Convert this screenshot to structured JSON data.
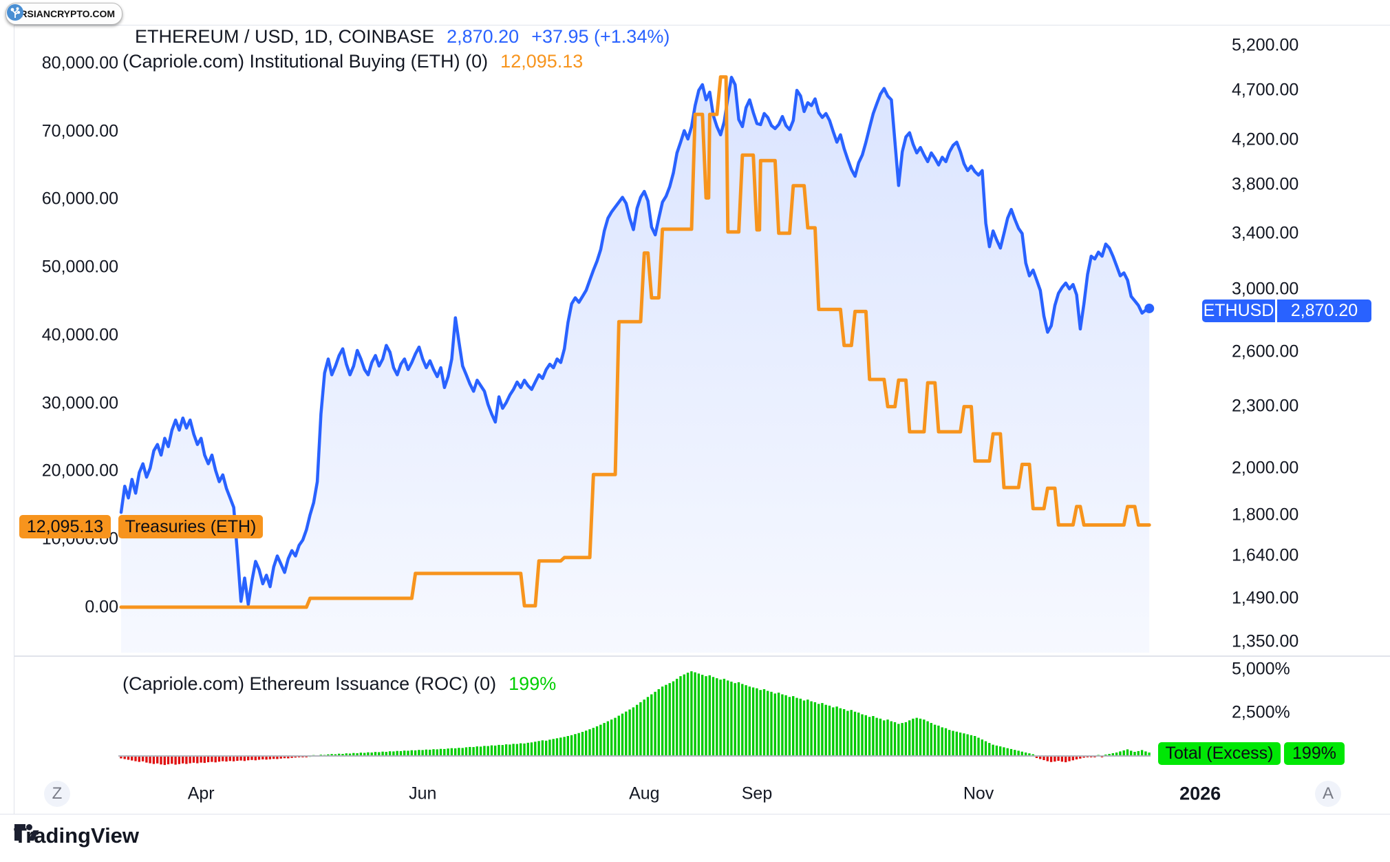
{
  "brand": {
    "name": "PARSIANCRYPTO.COM"
  },
  "header": {
    "symbol_title": "ETHEREUM / USD, 1D, COINBASE",
    "price": "2,870.20",
    "change": "+37.95 (+1.34%)",
    "indicator1_title": "(Capriole.com) Institutional Buying (ETH) (0)",
    "indicator1_value": "12,095.13"
  },
  "pane2": {
    "indicator_title": "(Capriole.com) Ethereum Issuance (ROC) (0)",
    "indicator_value": "199%"
  },
  "labels": {
    "treasuries_value": "12,095.13",
    "treasuries_name": "Treasuries (ETH)",
    "ethusd_name": "ETHUSD",
    "ethusd_value": "2,870.20",
    "total_excess_name": "Total (Excess)",
    "total_excess_value": "199%"
  },
  "buttons": {
    "scale_left": "Z",
    "scale_right": "A"
  },
  "footer": {
    "brand": "TradingView"
  },
  "colors": {
    "blue": "#2962FF",
    "orange": "#F7941D",
    "green_bar": "#00CC00",
    "green_bright": "#00E705",
    "red_bar": "#E01010",
    "text": "#131722",
    "muted": "#787b86",
    "frame": "#e0e3eb"
  },
  "left_axis": {
    "ticks": [
      {
        "label": "80,000.00",
        "value": 80000
      },
      {
        "label": "70,000.00",
        "value": 70000
      },
      {
        "label": "60,000.00",
        "value": 60000
      },
      {
        "label": "50,000.00",
        "value": 50000
      },
      {
        "label": "40,000.00",
        "value": 40000
      },
      {
        "label": "30,000.00",
        "value": 30000
      },
      {
        "label": "20,000.00",
        "value": 20000
      },
      {
        "label": "10,000.00",
        "value": 10000
      },
      {
        "label": "0.00",
        "value": 0
      }
    ]
  },
  "right_axis": {
    "ticks": [
      {
        "label": "5,200.00",
        "value": 5200
      },
      {
        "label": "4,700.00",
        "value": 4700
      },
      {
        "label": "4,200.00",
        "value": 4200
      },
      {
        "label": "3,800.00",
        "value": 3800
      },
      {
        "label": "3,400.00",
        "value": 3400
      },
      {
        "label": "3,000.00",
        "value": 3000
      },
      {
        "label": "2,600.00",
        "value": 2600
      },
      {
        "label": "2,300.00",
        "value": 2300
      },
      {
        "label": "2,000.00",
        "value": 2000
      },
      {
        "label": "1,800.00",
        "value": 1800
      },
      {
        "label": "1,640.00",
        "value": 1640
      },
      {
        "label": "1,490.00",
        "value": 1490
      },
      {
        "label": "1,350.00",
        "value": 1350
      }
    ]
  },
  "pane2_axis": {
    "ticks": [
      {
        "label": "5,000%",
        "value": 5000
      },
      {
        "label": "2,500%",
        "value": 2500
      }
    ]
  },
  "time_axis": [
    {
      "label": "Apr",
      "day": 22
    },
    {
      "label": "Jun",
      "day": 83
    },
    {
      "label": "Aug",
      "day": 144
    },
    {
      "label": "Sep",
      "day": 175
    },
    {
      "label": "Nov",
      "day": 236
    },
    {
      "label": "2026",
      "day": 297,
      "bold": true
    }
  ],
  "chart_data": [
    {
      "type": "area",
      "name": "ETHUSD price",
      "axis": "right-log",
      "ylim": [
        1350,
        5200
      ],
      "last_value": 2870.2,
      "values": [
        1810,
        1920,
        1870,
        1950,
        1890,
        1980,
        2020,
        1960,
        2000,
        2080,
        2110,
        2060,
        2140,
        2100,
        2180,
        2230,
        2180,
        2240,
        2190,
        2230,
        2160,
        2110,
        2140,
        2060,
        2020,
        2060,
        1990,
        1940,
        1970,
        1910,
        1870,
        1830,
        1650,
        1480,
        1560,
        1470,
        1550,
        1620,
        1590,
        1540,
        1570,
        1530,
        1600,
        1640,
        1610,
        1580,
        1630,
        1660,
        1640,
        1680,
        1700,
        1740,
        1800,
        1850,
        1940,
        2260,
        2480,
        2560,
        2470,
        2520,
        2580,
        2620,
        2530,
        2470,
        2520,
        2610,
        2560,
        2500,
        2470,
        2540,
        2580,
        2520,
        2560,
        2640,
        2600,
        2510,
        2470,
        2530,
        2560,
        2500,
        2540,
        2590,
        2630,
        2560,
        2510,
        2550,
        2500,
        2460,
        2510,
        2400,
        2460,
        2560,
        2810,
        2660,
        2520,
        2470,
        2420,
        2380,
        2440,
        2410,
        2380,
        2310,
        2260,
        2220,
        2350,
        2290,
        2320,
        2360,
        2390,
        2430,
        2400,
        2440,
        2410,
        2390,
        2430,
        2470,
        2450,
        2500,
        2530,
        2510,
        2560,
        2540,
        2620,
        2780,
        2900,
        2940,
        2910,
        2950,
        2990,
        3060,
        3130,
        3195,
        3280,
        3420,
        3520,
        3570,
        3610,
        3650,
        3690,
        3640,
        3520,
        3430,
        3600,
        3690,
        3740,
        3660,
        3450,
        3390,
        3520,
        3650,
        3700,
        3780,
        3900,
        4080,
        4180,
        4290,
        4210,
        4330,
        4540,
        4700,
        4760,
        4600,
        4680,
        4440,
        4330,
        4250,
        4380,
        4620,
        4840,
        4760,
        4400,
        4330,
        4520,
        4600,
        4470,
        4360,
        4350,
        4460,
        4420,
        4340,
        4310,
        4350,
        4430,
        4340,
        4300,
        4390,
        4700,
        4640,
        4480,
        4570,
        4540,
        4610,
        4470,
        4420,
        4460,
        4390,
        4280,
        4180,
        4250,
        4120,
        4020,
        3930,
        3870,
        3990,
        4060,
        4180,
        4320,
        4460,
        4560,
        4660,
        4720,
        4640,
        4600,
        4180,
        3790,
        4090,
        4230,
        4270,
        4160,
        4080,
        4130,
        4060,
        4000,
        4080,
        4030,
        3970,
        4040,
        4000,
        4090,
        4150,
        4180,
        4090,
        3980,
        3920,
        3960,
        3910,
        3880,
        3920,
        3480,
        3300,
        3420,
        3350,
        3290,
        3400,
        3520,
        3590,
        3510,
        3440,
        3400,
        3180,
        3090,
        3130,
        3060,
        2990,
        2820,
        2720,
        2760,
        2890,
        2970,
        3010,
        3040,
        3000,
        3030,
        2960,
        2740,
        2900,
        3100,
        3230,
        3210,
        3260,
        3230,
        3320,
        3290,
        3230,
        3160,
        3090,
        3110,
        3060,
        2950,
        2920,
        2890,
        2840,
        2860,
        2870.2
      ]
    },
    {
      "type": "line",
      "name": "Treasuries (ETH)",
      "axis": "left-linear",
      "ylim": [
        0,
        80000
      ],
      "last_value": 12095.13,
      "steps": [
        [
          0,
          0
        ],
        [
          51,
          0
        ],
        [
          52,
          1300
        ],
        [
          80,
          1300
        ],
        [
          81,
          4960
        ],
        [
          110,
          4960
        ],
        [
          111,
          200
        ],
        [
          114,
          200
        ],
        [
          115,
          6800
        ],
        [
          121,
          6800
        ],
        [
          122,
          7300
        ],
        [
          129,
          7300
        ],
        [
          130,
          19500
        ],
        [
          136,
          19500
        ],
        [
          137,
          42000
        ],
        [
          143,
          42000
        ],
        [
          144,
          52100
        ],
        [
          145,
          52100
        ],
        [
          146,
          45500
        ],
        [
          148,
          45500
        ],
        [
          149,
          55600
        ],
        [
          157,
          55600
        ],
        [
          158,
          72500
        ],
        [
          160,
          72500
        ],
        [
          161,
          60200
        ],
        [
          161.7,
          60200
        ],
        [
          162,
          72500
        ],
        [
          164,
          72500
        ],
        [
          165,
          78000
        ],
        [
          166.5,
          78000
        ],
        [
          167,
          55200
        ],
        [
          170,
          55200
        ],
        [
          171,
          66500
        ],
        [
          174,
          66500
        ],
        [
          175,
          55500
        ],
        [
          175.7,
          55500
        ],
        [
          176,
          65700
        ],
        [
          180,
          65700
        ],
        [
          181,
          55000
        ],
        [
          184,
          55000
        ],
        [
          185,
          62000
        ],
        [
          188,
          62000
        ],
        [
          189,
          55800
        ],
        [
          191,
          55800
        ],
        [
          192,
          43800
        ],
        [
          198,
          43800
        ],
        [
          199,
          38500
        ],
        [
          201,
          38500
        ],
        [
          202,
          43500
        ],
        [
          205,
          43500
        ],
        [
          206,
          33500
        ],
        [
          210,
          33500
        ],
        [
          211,
          29500
        ],
        [
          213,
          29500
        ],
        [
          214,
          33400
        ],
        [
          216,
          33400
        ],
        [
          217,
          25800
        ],
        [
          221,
          25800
        ],
        [
          222,
          33000
        ],
        [
          224,
          33000
        ],
        [
          225,
          25800
        ],
        [
          231,
          25800
        ],
        [
          232,
          29500
        ],
        [
          234,
          29500
        ],
        [
          235,
          21500
        ],
        [
          239,
          21500
        ],
        [
          240,
          25500
        ],
        [
          242,
          25500
        ],
        [
          243,
          17600
        ],
        [
          247,
          17600
        ],
        [
          248,
          21000
        ],
        [
          250,
          21000
        ],
        [
          251,
          14500
        ],
        [
          254,
          14500
        ],
        [
          255,
          17500
        ],
        [
          257,
          17500
        ],
        [
          258,
          12100
        ],
        [
          262,
          12100
        ],
        [
          263,
          14800
        ],
        [
          264,
          14800
        ],
        [
          265,
          12095
        ],
        [
          276,
          12095
        ],
        [
          277,
          14800
        ],
        [
          279,
          14800
        ],
        [
          280,
          12095
        ],
        [
          283,
          12095
        ]
      ]
    },
    {
      "type": "bar",
      "name": "Ethereum Issuance ROC %",
      "axis": "pane2-percent",
      "ylim": [
        -700,
        5000
      ],
      "last_value": 199,
      "values": [
        -140,
        -180,
        -220,
        -260,
        -300,
        -340,
        -310,
        -380,
        -420,
        -460,
        -430,
        -490,
        -520,
        -480,
        -450,
        -500,
        -470,
        -430,
        -460,
        -420,
        -390,
        -420,
        -380,
        -400,
        -360,
        -340,
        -370,
        -330,
        -300,
        -320,
        -290,
        -310,
        -280,
        -260,
        -290,
        -250,
        -230,
        -250,
        -220,
        -200,
        -210,
        -190,
        -170,
        -180,
        -150,
        -130,
        -140,
        -110,
        -90,
        -70,
        -60,
        -40,
        30,
        50,
        40,
        70,
        60,
        90,
        110,
        100,
        130,
        120,
        150,
        140,
        170,
        160,
        190,
        180,
        210,
        200,
        230,
        220,
        250,
        240,
        270,
        260,
        290,
        280,
        310,
        300,
        330,
        320,
        350,
        340,
        370,
        360,
        390,
        380,
        410,
        400,
        430,
        450,
        440,
        470,
        460,
        500,
        520,
        510,
        550,
        540,
        580,
        570,
        610,
        600,
        640,
        630,
        670,
        660,
        700,
        690,
        730,
        720,
        760,
        780,
        820,
        860,
        900,
        880,
        940,
        980,
        1020,
        1060,
        1100,
        1150,
        1200,
        1260,
        1320,
        1390,
        1460,
        1540,
        1620,
        1710,
        1800,
        1900,
        2000,
        2100,
        2200,
        2320,
        2440,
        2560,
        2680,
        2800,
        2950,
        3100,
        3250,
        3400,
        3550,
        3700,
        3850,
        4000,
        4100,
        4200,
        4300,
        4450,
        4600,
        4700,
        4800,
        4880,
        4820,
        4750,
        4680,
        4600,
        4650,
        4550,
        4480,
        4400,
        4450,
        4350,
        4280,
        4200,
        4250,
        4150,
        4080,
        4000,
        3950,
        3900,
        3800,
        3850,
        3750,
        3700,
        3600,
        3650,
        3550,
        3500,
        3400,
        3450,
        3350,
        3300,
        3200,
        3250,
        3150,
        3100,
        3000,
        3050,
        2950,
        2900,
        2800,
        2850,
        2750,
        2700,
        2600,
        2650,
        2550,
        2500,
        2400,
        2350,
        2250,
        2300,
        2200,
        2150,
        2050,
        2100,
        2000,
        1950,
        1850,
        1900,
        1950,
        2050,
        2150,
        2200,
        2150,
        2100,
        2000,
        1900,
        1800,
        1750,
        1650,
        1600,
        1500,
        1450,
        1400,
        1350,
        1300,
        1250,
        1200,
        1150,
        1050,
        950,
        850,
        750,
        650,
        600,
        550,
        500,
        450,
        400,
        350,
        300,
        250,
        200,
        150,
        100,
        -120,
        -180,
        -240,
        -300,
        -350,
        -320,
        -280,
        -330,
        -360,
        -300,
        -250,
        -200,
        -150,
        -100,
        -80,
        -60,
        -50,
        60,
        -40,
        80,
        120,
        160,
        200,
        260,
        320,
        380,
        300,
        240,
        280,
        340,
        260,
        199
      ]
    }
  ]
}
